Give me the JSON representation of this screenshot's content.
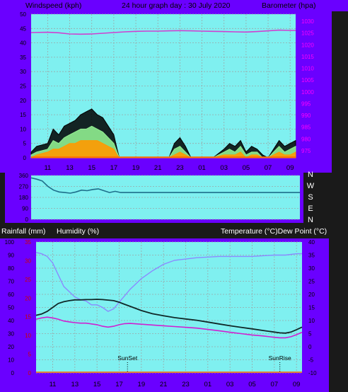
{
  "header": {
    "left": "Windspeed (kph)",
    "center": "24 hour graph day : 30 July 2020",
    "right": "Barometer (hpa)"
  },
  "panel3": {
    "left_label": "Rainfall (mm)",
    "mid_label": "Humidity (%)",
    "right_label": "Temperature (°C)Dew Point (°C)"
  },
  "colors": {
    "frame": "#6a00ff",
    "plot_bg": "#7ff0f0",
    "barometer": "#d040d0",
    "wind_max": "#000000",
    "wind_avg": "#90ee90",
    "wind_min": "#ff9900",
    "wind_dir": "#1e6e8a",
    "humidity": "#8a8aff",
    "temperature": "#102828",
    "dew_point": "#d020d0"
  },
  "chart_data": [
    {
      "type": "line",
      "title": "24 hour graph day : 30 July 2020",
      "x_ticks": [
        "11",
        "13",
        "15",
        "17",
        "19",
        "21",
        "23",
        "01",
        "03",
        "05",
        "07",
        "09"
      ],
      "y_left_label": "Windspeed (kph)",
      "y_left_ticks": [
        "0",
        "5",
        "10",
        "15",
        "20",
        "25",
        "30",
        "35",
        "40",
        "45",
        "50"
      ],
      "y_left_lim": [
        0,
        50
      ],
      "y_right_label": "Barometer (hpa)",
      "y_right_ticks": [
        "975",
        "980",
        "985",
        "990",
        "995",
        "1000",
        "1005",
        "1010",
        "1015",
        "1020",
        "1025",
        "1030"
      ],
      "y_right_lim": [
        972,
        1033
      ],
      "series": [
        {
          "name": "Barometer (hpa)",
          "axis": "right",
          "x": [
            9.5,
            11,
            12,
            13,
            14,
            15,
            16,
            17,
            18,
            19,
            20,
            21,
            22,
            23,
            24,
            25,
            26,
            27,
            28,
            29,
            30,
            31,
            32,
            33,
            33.5
          ],
          "y": [
            1025.2,
            1025.3,
            1025.1,
            1024.6,
            1024.5,
            1024.6,
            1024.9,
            1025.2,
            1025.5,
            1025.7,
            1025.8,
            1025.8,
            1025.9,
            1026.0,
            1025.9,
            1025.8,
            1025.7,
            1025.6,
            1025.5,
            1025.4,
            1025.6,
            1025.9,
            1026.2,
            1026.1,
            1026.1
          ]
        },
        {
          "name": "Windspeed",
          "axis": "left",
          "x": [
            9.5,
            10,
            11,
            11.5,
            12,
            12.5,
            13,
            13.5,
            14,
            14.5,
            15,
            15.5,
            16,
            16.5,
            17,
            17.3,
            17.5,
            19,
            21,
            22,
            22.5,
            23,
            23.5,
            24,
            25,
            26,
            27,
            27.5,
            28,
            28.5,
            29,
            29.5,
            30,
            30.5,
            31,
            31.5,
            32,
            32.5,
            33,
            33.5
          ],
          "y": [
            2,
            4,
            5,
            10,
            8,
            11,
            12,
            13,
            15,
            16,
            17,
            15,
            14,
            11,
            8,
            3,
            0,
            0,
            0,
            0,
            5,
            7,
            4,
            0,
            0,
            0,
            3,
            5,
            4,
            6,
            2,
            4,
            3,
            1,
            0,
            3,
            6,
            4,
            5,
            6
          ]
        },
        {
          "name": "Wind gust",
          "axis": "left",
          "x": [
            9.5,
            10,
            11,
            11.5,
            12,
            12.5,
            13,
            13.5,
            14,
            14.5,
            15,
            15.5,
            16,
            16.5,
            17,
            17.3,
            17.5,
            19,
            21,
            22,
            22.5,
            23,
            23.5,
            24,
            25,
            26,
            27,
            27.5,
            28,
            28.5,
            29,
            29.5,
            30,
            30.5,
            31,
            31.5,
            32,
            32.5,
            33,
            33.5
          ],
          "y": [
            1,
            2,
            3,
            6,
            5,
            7,
            8,
            9,
            10,
            10,
            11,
            10,
            9,
            7,
            5,
            2,
            0,
            0,
            0,
            0,
            3,
            4,
            2,
            0,
            0,
            0,
            2,
            3,
            2,
            4,
            1,
            2,
            2,
            0,
            0,
            2,
            4,
            2,
            3,
            4
          ]
        },
        {
          "name": "Wind min",
          "axis": "left",
          "x": [
            9.5,
            10,
            11,
            11.5,
            12,
            12.5,
            13,
            13.5,
            14,
            14.5,
            15,
            15.5,
            16,
            16.5,
            17,
            17.3,
            17.5,
            19,
            21,
            22,
            22.5,
            23,
            23.5,
            24,
            25,
            26,
            27,
            27.5,
            28,
            28.5,
            29,
            29.5,
            30,
            30.5,
            31,
            31.5,
            32,
            32.5,
            33,
            33.5
          ],
          "y": [
            0,
            1,
            2,
            3,
            3,
            4,
            5,
            5,
            6,
            6,
            6,
            6,
            5,
            4,
            3,
            1,
            0,
            0,
            0,
            0,
            1,
            2,
            1,
            0,
            0,
            0,
            1,
            1,
            1,
            2,
            0,
            1,
            1,
            0,
            0,
            1,
            2,
            1,
            1,
            2
          ]
        }
      ]
    },
    {
      "type": "line",
      "y_ticks": [
        "360",
        "270",
        "180",
        "90",
        "0"
      ],
      "y_lim": [
        0,
        360
      ],
      "right_labels": [
        "N",
        "W",
        "S",
        "E",
        "N"
      ],
      "series": [
        {
          "name": "Wind direction",
          "x": [
            9.5,
            10,
            10.5,
            11,
            11.5,
            12,
            12.5,
            13,
            13.5,
            14,
            14.5,
            15,
            15.5,
            16,
            16.5,
            17,
            17.5,
            18,
            20,
            22,
            24,
            26,
            28,
            30,
            32,
            33.5
          ],
          "y": [
            340,
            330,
            315,
            270,
            240,
            225,
            220,
            215,
            225,
            240,
            235,
            245,
            250,
            235,
            220,
            230,
            220,
            220,
            220,
            220,
            220,
            220,
            220,
            220,
            220,
            220
          ]
        }
      ]
    },
    {
      "type": "line",
      "x_ticks": [
        "11",
        "13",
        "15",
        "17",
        "19",
        "21",
        "23",
        "01",
        "03",
        "05",
        "07",
        "09"
      ],
      "y_left1_label": "Rainfall (mm)",
      "y_left1_ticks": [
        "0",
        "5",
        "10",
        "15",
        "20",
        "25",
        "30",
        "35"
      ],
      "y_left1_lim": [
        0,
        35
      ],
      "y_left2_label": "Humidity (%)",
      "y_left2_ticks": [
        "0",
        "10",
        "20",
        "30",
        "40",
        "50",
        "60",
        "70",
        "80",
        "90",
        "100"
      ],
      "y_left2_lim": [
        0,
        100
      ],
      "y_right_label": "Temperature (°C)Dew Point (°C)",
      "y_right_ticks": [
        "-10",
        "-5",
        "0",
        "5",
        "10",
        "15",
        "20",
        "25",
        "30",
        "35",
        "40"
      ],
      "y_right_lim": [
        -10,
        40
      ],
      "annotations": [
        {
          "text": "SunSet",
          "x": 17.75
        },
        {
          "text": "SunRise",
          "x": 31.5
        }
      ],
      "series": [
        {
          "name": "Humidity (%)",
          "axis": "left2",
          "x": [
            9.5,
            10,
            10.5,
            11,
            11.5,
            12,
            12.5,
            13,
            13.5,
            14,
            14.5,
            15,
            15.5,
            16,
            16.5,
            17,
            17.5,
            18,
            18.5,
            19,
            20,
            21,
            22,
            23,
            24,
            25,
            26,
            27,
            28,
            29,
            30,
            31,
            32,
            33,
            33.5
          ],
          "y": [
            92,
            91,
            89,
            84,
            75,
            66,
            62,
            58,
            56,
            55,
            52,
            52,
            50,
            47,
            49,
            54,
            59,
            64,
            68,
            72,
            78,
            83,
            86,
            87,
            88,
            88.5,
            89,
            89,
            89,
            89,
            89.5,
            90,
            90,
            91,
            91
          ]
        },
        {
          "name": "Temperature (°C)",
          "axis": "right",
          "x": [
            9.5,
            10,
            10.5,
            11,
            11.5,
            12,
            12.5,
            13,
            13.5,
            14,
            14.5,
            15,
            15.5,
            16,
            16.5,
            17,
            17.5,
            18,
            19,
            20,
            21,
            22,
            23,
            24,
            25,
            26,
            27,
            28,
            29,
            30,
            31,
            31.5,
            32,
            32.5,
            33,
            33.5
          ],
          "y": [
            12,
            12.5,
            13.5,
            15,
            16.5,
            17.2,
            17.6,
            17.9,
            17.9,
            18,
            18,
            18.1,
            18,
            17.8,
            17.6,
            17,
            16.2,
            15.4,
            13.8,
            12.6,
            11.8,
            11.1,
            10.6,
            10.1,
            9.4,
            8.7,
            8,
            7.4,
            6.8,
            6.2,
            5.6,
            5.3,
            5.2,
            5.6,
            6.5,
            7.5
          ]
        },
        {
          "name": "Dew Point (°C)",
          "axis": "right",
          "x": [
            9.5,
            10,
            10.5,
            11,
            11.5,
            12,
            12.5,
            13,
            13.5,
            14,
            14.5,
            15,
            15.5,
            16,
            16.5,
            17,
            17.5,
            18,
            19,
            20,
            21,
            22,
            23,
            24,
            25,
            26,
            27,
            28,
            29,
            30,
            31,
            31.5,
            32,
            32.5,
            33,
            33.5
          ],
          "y": [
            10.5,
            11,
            11.3,
            11,
            10.5,
            9.8,
            9.5,
            9.2,
            9,
            9,
            8.7,
            8.4,
            7.8,
            7.5,
            7.8,
            8.4,
            8.8,
            8.9,
            8.6,
            8.3,
            8,
            7.7,
            7.4,
            7.1,
            6.6,
            6.1,
            5.5,
            5,
            4.5,
            4.1,
            3.6,
            3.4,
            3.4,
            3.8,
            4.6,
            5.5
          ]
        },
        {
          "name": "Rainfall (mm)",
          "axis": "left1",
          "x": [
            9.5,
            33.5
          ],
          "y": [
            0,
            0
          ]
        }
      ]
    }
  ]
}
